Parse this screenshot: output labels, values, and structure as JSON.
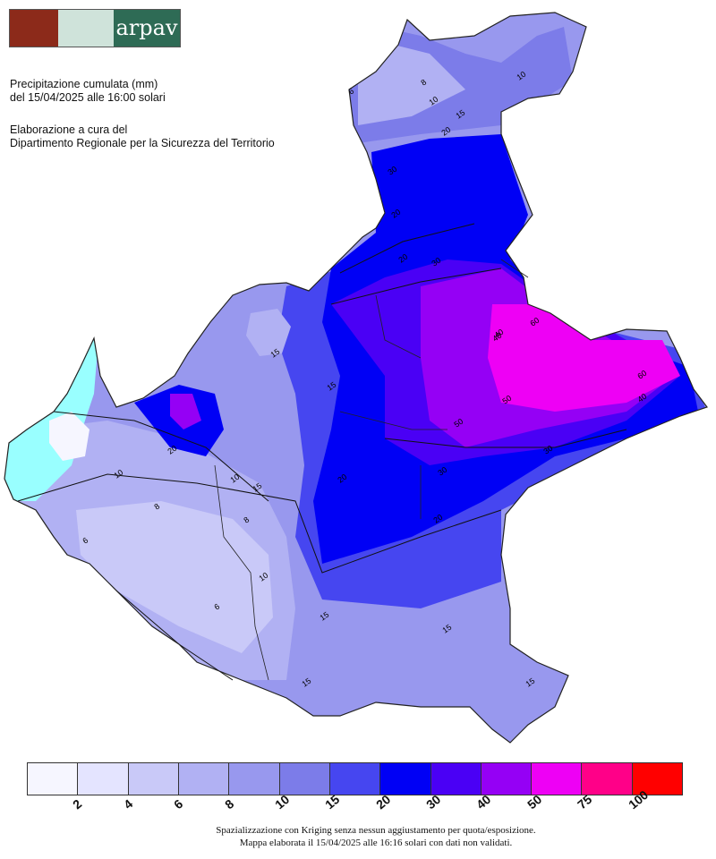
{
  "header": {
    "logo_text": "arpav",
    "title_line1": "Precipitazione cumulata (mm)",
    "title_line2": "del 15/04/2025 alle 16:00 solari",
    "credit_line1": "Elaborazione a cura del",
    "credit_line2": "Dipartimento Regionale per la Sicurezza del Territorio"
  },
  "legend": {
    "colors": [
      "#f6f6ff",
      "#e4e4ff",
      "#c9c9f8",
      "#b1b1f3",
      "#9898ee",
      "#7c7ce9",
      "#4646f0",
      "#0000f5",
      "#4a00f5",
      "#9500f5",
      "#ee00f5",
      "#ff0088",
      "#ff0000"
    ],
    "ticks": [
      "2",
      "4",
      "6",
      "8",
      "10",
      "15",
      "20",
      "30",
      "40",
      "50",
      "75",
      "100"
    ]
  },
  "contour_labels": [
    {
      "value": "6"
    },
    {
      "value": "8"
    },
    {
      "value": "10"
    },
    {
      "value": "15"
    },
    {
      "value": "10"
    },
    {
      "value": "20"
    },
    {
      "value": "30"
    },
    {
      "value": "20"
    },
    {
      "value": "20"
    },
    {
      "value": "30"
    },
    {
      "value": "40"
    },
    {
      "value": "50"
    },
    {
      "value": "60"
    },
    {
      "value": "40"
    },
    {
      "value": "30"
    },
    {
      "value": "30"
    },
    {
      "value": "20"
    },
    {
      "value": "15"
    },
    {
      "value": "15"
    },
    {
      "value": "15"
    },
    {
      "value": "10"
    },
    {
      "value": "8"
    },
    {
      "value": "6"
    },
    {
      "value": "10"
    },
    {
      "value": "15"
    },
    {
      "value": "20"
    },
    {
      "value": "15"
    },
    {
      "value": "15"
    },
    {
      "value": "8"
    },
    {
      "value": "6"
    },
    {
      "value": "10"
    },
    {
      "value": "15"
    },
    {
      "value": "50"
    },
    {
      "value": "40"
    },
    {
      "value": "60"
    },
    {
      "value": "20"
    }
  ],
  "footer": {
    "line1": "Spazializzazione con Kriging senza nessun aggiustamento per quota/esposizione.",
    "line2": "Mappa elaborata il 15/04/2025 alle 16:16 solari con dati non validati."
  }
}
